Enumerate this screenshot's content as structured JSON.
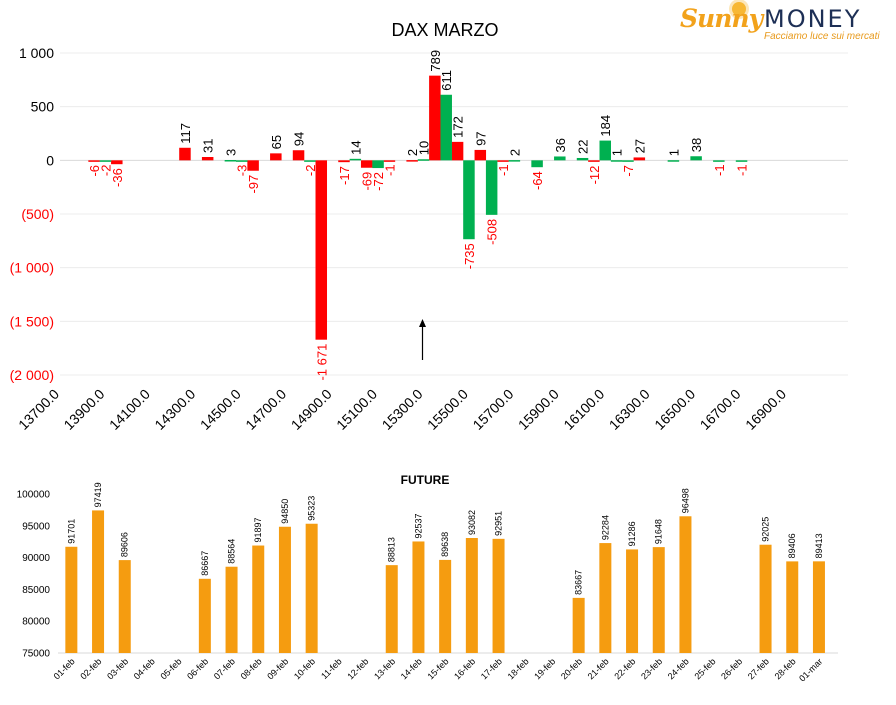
{
  "logo": {
    "brand_a": "Sunny",
    "brand_b": "MONEY",
    "tagline": "Facciamo luce sui mercati"
  },
  "colors": {
    "positive": "#00b050",
    "negative": "#ff0000",
    "bar": "#f59c10",
    "negative_label": "#ff0000",
    "text": "#000000"
  },
  "chart_data": [
    {
      "type": "bar",
      "title": "DAX MARZO",
      "ylim": [
        -2000,
        1000
      ],
      "yticks": [
        "1 000",
        "500",
        "0",
        "(500)",
        "(1 000)",
        "(1 500)",
        "(2 000)"
      ],
      "yticks_values": [
        1000,
        500,
        0,
        -500,
        -1000,
        -1500,
        -2000
      ],
      "xticks": [
        "13700.0",
        "13900.0",
        "14100.0",
        "14300.0",
        "14500.0",
        "14700.0",
        "14900.0",
        "15100.0",
        "15300.0",
        "15500.0",
        "15700.0",
        "15900.0",
        "16100.0",
        "16300.0",
        "16500.0",
        "16700.0",
        "16900.0"
      ],
      "annotation": "arrow at 15300",
      "series": [
        {
          "color": "red",
          "points": [
            [
              13850,
              -6
            ],
            [
              13950,
              -36
            ],
            [
              14250,
              117
            ],
            [
              14350,
              31
            ],
            [
              14550,
              -97
            ],
            [
              14650,
              65
            ],
            [
              14750,
              94
            ],
            [
              14850,
              -1671
            ],
            [
              14950,
              -17
            ],
            [
              15050,
              -69
            ],
            [
              15150,
              -1
            ],
            [
              15250,
              2
            ],
            [
              15350,
              789
            ],
            [
              15450,
              172
            ],
            [
              15550,
              97
            ],
            [
              15650,
              -1
            ],
            [
              16050,
              -12
            ],
            [
              16250,
              27
            ]
          ]
        },
        {
          "color": "green",
          "points": [
            [
              13900,
              -2
            ],
            [
              14450,
              3
            ],
            [
              14500,
              -3
            ],
            [
              14800,
              -2
            ],
            [
              15000,
              14
            ],
            [
              15100,
              -72
            ],
            [
              15300,
              10
            ],
            [
              15400,
              611
            ],
            [
              15500,
              -735
            ],
            [
              15600,
              -508
            ],
            [
              15700,
              2
            ],
            [
              15800,
              -64
            ],
            [
              15900,
              36
            ],
            [
              16000,
              22
            ],
            [
              16100,
              184
            ],
            [
              16150,
              1
            ],
            [
              16200,
              -7
            ],
            [
              16400,
              1
            ],
            [
              16500,
              38
            ],
            [
              16600,
              -1
            ],
            [
              16700,
              -1
            ]
          ]
        }
      ]
    },
    {
      "type": "bar",
      "title": "FUTURE",
      "ylim": [
        75000,
        100000
      ],
      "yticks": [
        "100000",
        "95000",
        "90000",
        "85000",
        "80000",
        "75000"
      ],
      "yticks_values": [
        100000,
        95000,
        90000,
        85000,
        80000,
        75000
      ],
      "categories": [
        "01-feb",
        "02-feb",
        "03-feb",
        "04-feb",
        "05-feb",
        "06-feb",
        "07-feb",
        "08-feb",
        "09-feb",
        "10-feb",
        "11-feb",
        "12-feb",
        "13-feb",
        "14-feb",
        "15-feb",
        "16-feb",
        "17-feb",
        "18-feb",
        "19-feb",
        "20-feb",
        "21-feb",
        "22-feb",
        "23-feb",
        "24-feb",
        "25-feb",
        "26-feb",
        "27-feb",
        "28-feb",
        "01-mar"
      ],
      "values": [
        91701,
        97419,
        89606,
        null,
        null,
        86667,
        88564,
        91897,
        94850,
        95323,
        null,
        null,
        88813,
        92537,
        89638,
        93082,
        92951,
        null,
        null,
        83667,
        92284,
        91286,
        91648,
        96498,
        null,
        null,
        92025,
        89406,
        89413
      ]
    }
  ]
}
